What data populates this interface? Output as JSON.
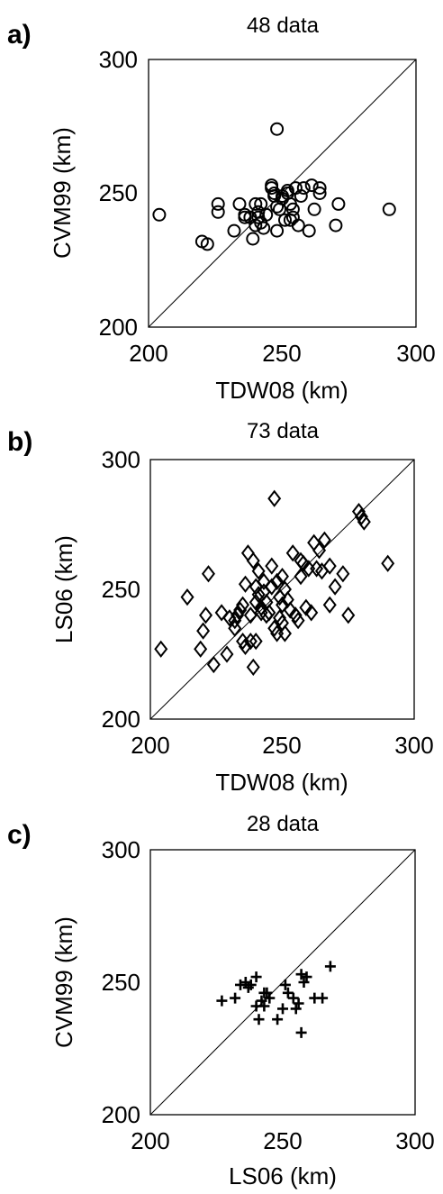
{
  "figure": {
    "colors": {
      "axes": "#000000",
      "marker": "#000000",
      "background": "#ffffff"
    }
  },
  "chart_data": [
    {
      "type": "scatter",
      "panel_label": "a)",
      "title": "48 data",
      "xlabel": "TDW08 (km)",
      "ylabel": "CVM99 (km)",
      "xlim": [
        200,
        300
      ],
      "ylim": [
        200,
        300
      ],
      "xticks": [
        "200",
        "250",
        "300"
      ],
      "yticks": [
        "200",
        "250",
        "300"
      ],
      "marker": "circle",
      "grid": false,
      "reference_line": "y = x",
      "points": [
        [
          204,
          242
        ],
        [
          220,
          232
        ],
        [
          222,
          231
        ],
        [
          226,
          246
        ],
        [
          226,
          243
        ],
        [
          232,
          236
        ],
        [
          234,
          246
        ],
        [
          236,
          241
        ],
        [
          238,
          241
        ],
        [
          239,
          233
        ],
        [
          240,
          246
        ],
        [
          240,
          238
        ],
        [
          241,
          241
        ],
        [
          241,
          243
        ],
        [
          242,
          246
        ],
        [
          242,
          239
        ],
        [
          243,
          237
        ],
        [
          246,
          253
        ],
        [
          246,
          252
        ],
        [
          247,
          250
        ],
        [
          248,
          236
        ],
        [
          248,
          274
        ],
        [
          248,
          245
        ],
        [
          249,
          244
        ],
        [
          250,
          249
        ],
        [
          251,
          240
        ],
        [
          252,
          251
        ],
        [
          253,
          246
        ],
        [
          253,
          240
        ],
        [
          254,
          244
        ],
        [
          255,
          252
        ],
        [
          256,
          238
        ],
        [
          258,
          252
        ],
        [
          260,
          236
        ],
        [
          261,
          253
        ],
        [
          262,
          244
        ],
        [
          264,
          252
        ],
        [
          264,
          250
        ],
        [
          270,
          238
        ],
        [
          271,
          246
        ],
        [
          290,
          244
        ],
        [
          236,
          242
        ],
        [
          244,
          242
        ],
        [
          247,
          249
        ],
        [
          250,
          248
        ],
        [
          252,
          250
        ],
        [
          254,
          241
        ],
        [
          257,
          249
        ]
      ]
    },
    {
      "type": "scatter",
      "panel_label": "b)",
      "title": "73 data",
      "xlabel": "TDW08 (km)",
      "ylabel": "LS06 (km)",
      "xlim": [
        200,
        300
      ],
      "ylim": [
        200,
        300
      ],
      "xticks": [
        "200",
        "250",
        "300"
      ],
      "yticks": [
        "200",
        "250",
        "300"
      ],
      "marker": "diamond",
      "grid": false,
      "reference_line": "y = x",
      "points": [
        [
          204,
          227
        ],
        [
          214,
          247
        ],
        [
          219,
          227
        ],
        [
          220,
          234
        ],
        [
          221,
          240
        ],
        [
          222,
          256
        ],
        [
          224,
          221
        ],
        [
          227,
          241
        ],
        [
          229,
          225
        ],
        [
          230,
          239
        ],
        [
          232,
          235
        ],
        [
          233,
          240
        ],
        [
          234,
          242
        ],
        [
          235,
          230
        ],
        [
          235,
          244
        ],
        [
          236,
          228
        ],
        [
          236,
          252
        ],
        [
          237,
          264
        ],
        [
          238,
          230
        ],
        [
          238,
          240
        ],
        [
          239,
          261
        ],
        [
          239,
          220
        ],
        [
          240,
          230
        ],
        [
          240,
          245
        ],
        [
          240,
          251
        ],
        [
          241,
          257
        ],
        [
          241,
          248
        ],
        [
          242,
          243
        ],
        [
          242,
          241
        ],
        [
          243,
          253
        ],
        [
          243,
          249
        ],
        [
          244,
          240
        ],
        [
          244,
          245
        ],
        [
          245,
          241
        ],
        [
          246,
          259
        ],
        [
          246,
          251
        ],
        [
          247,
          235
        ],
        [
          247,
          285
        ],
        [
          248,
          253
        ],
        [
          248,
          233
        ],
        [
          249,
          247
        ],
        [
          249,
          239
        ],
        [
          250,
          237
        ],
        [
          250,
          255
        ],
        [
          250,
          244
        ],
        [
          251,
          250
        ],
        [
          251,
          233
        ],
        [
          252,
          246
        ],
        [
          253,
          242
        ],
        [
          254,
          264
        ],
        [
          255,
          240
        ],
        [
          256,
          238
        ],
        [
          257,
          255
        ],
        [
          257,
          261
        ],
        [
          258,
          260
        ],
        [
          259,
          243
        ],
        [
          260,
          258
        ],
        [
          261,
          241
        ],
        [
          262,
          268
        ],
        [
          263,
          258
        ],
        [
          264,
          265
        ],
        [
          265,
          257
        ],
        [
          266,
          269
        ],
        [
          268,
          259
        ],
        [
          268,
          244
        ],
        [
          270,
          251
        ],
        [
          273,
          256
        ],
        [
          275,
          240
        ],
        [
          279,
          280
        ],
        [
          280,
          278
        ],
        [
          281,
          276
        ],
        [
          290,
          260
        ],
        [
          232,
          238
        ]
      ]
    },
    {
      "type": "scatter",
      "panel_label": "c)",
      "title": "28 data",
      "xlabel": "LS06 (km)",
      "ylabel": "CVM99 (km)",
      "xlim": [
        200,
        300
      ],
      "ylim": [
        200,
        300
      ],
      "xticks": [
        "200",
        "250",
        "300"
      ],
      "yticks": [
        "200",
        "250",
        "300"
      ],
      "marker": "plus",
      "grid": false,
      "reference_line": "y = x",
      "points": [
        [
          227,
          243
        ],
        [
          232,
          244
        ],
        [
          234,
          249
        ],
        [
          236,
          250
        ],
        [
          237,
          248
        ],
        [
          238,
          249
        ],
        [
          240,
          241
        ],
        [
          240,
          252
        ],
        [
          241,
          236
        ],
        [
          242,
          243
        ],
        [
          243,
          246
        ],
        [
          243,
          241
        ],
        [
          244,
          246
        ],
        [
          245,
          244
        ],
        [
          248,
          236
        ],
        [
          250,
          240
        ],
        [
          251,
          249
        ],
        [
          252,
          246
        ],
        [
          254,
          244
        ],
        [
          255,
          240
        ],
        [
          256,
          242
        ],
        [
          257,
          231
        ],
        [
          257,
          253
        ],
        [
          258,
          250
        ],
        [
          259,
          252
        ],
        [
          262,
          244
        ],
        [
          265,
          244
        ],
        [
          268,
          256
        ]
      ]
    }
  ]
}
